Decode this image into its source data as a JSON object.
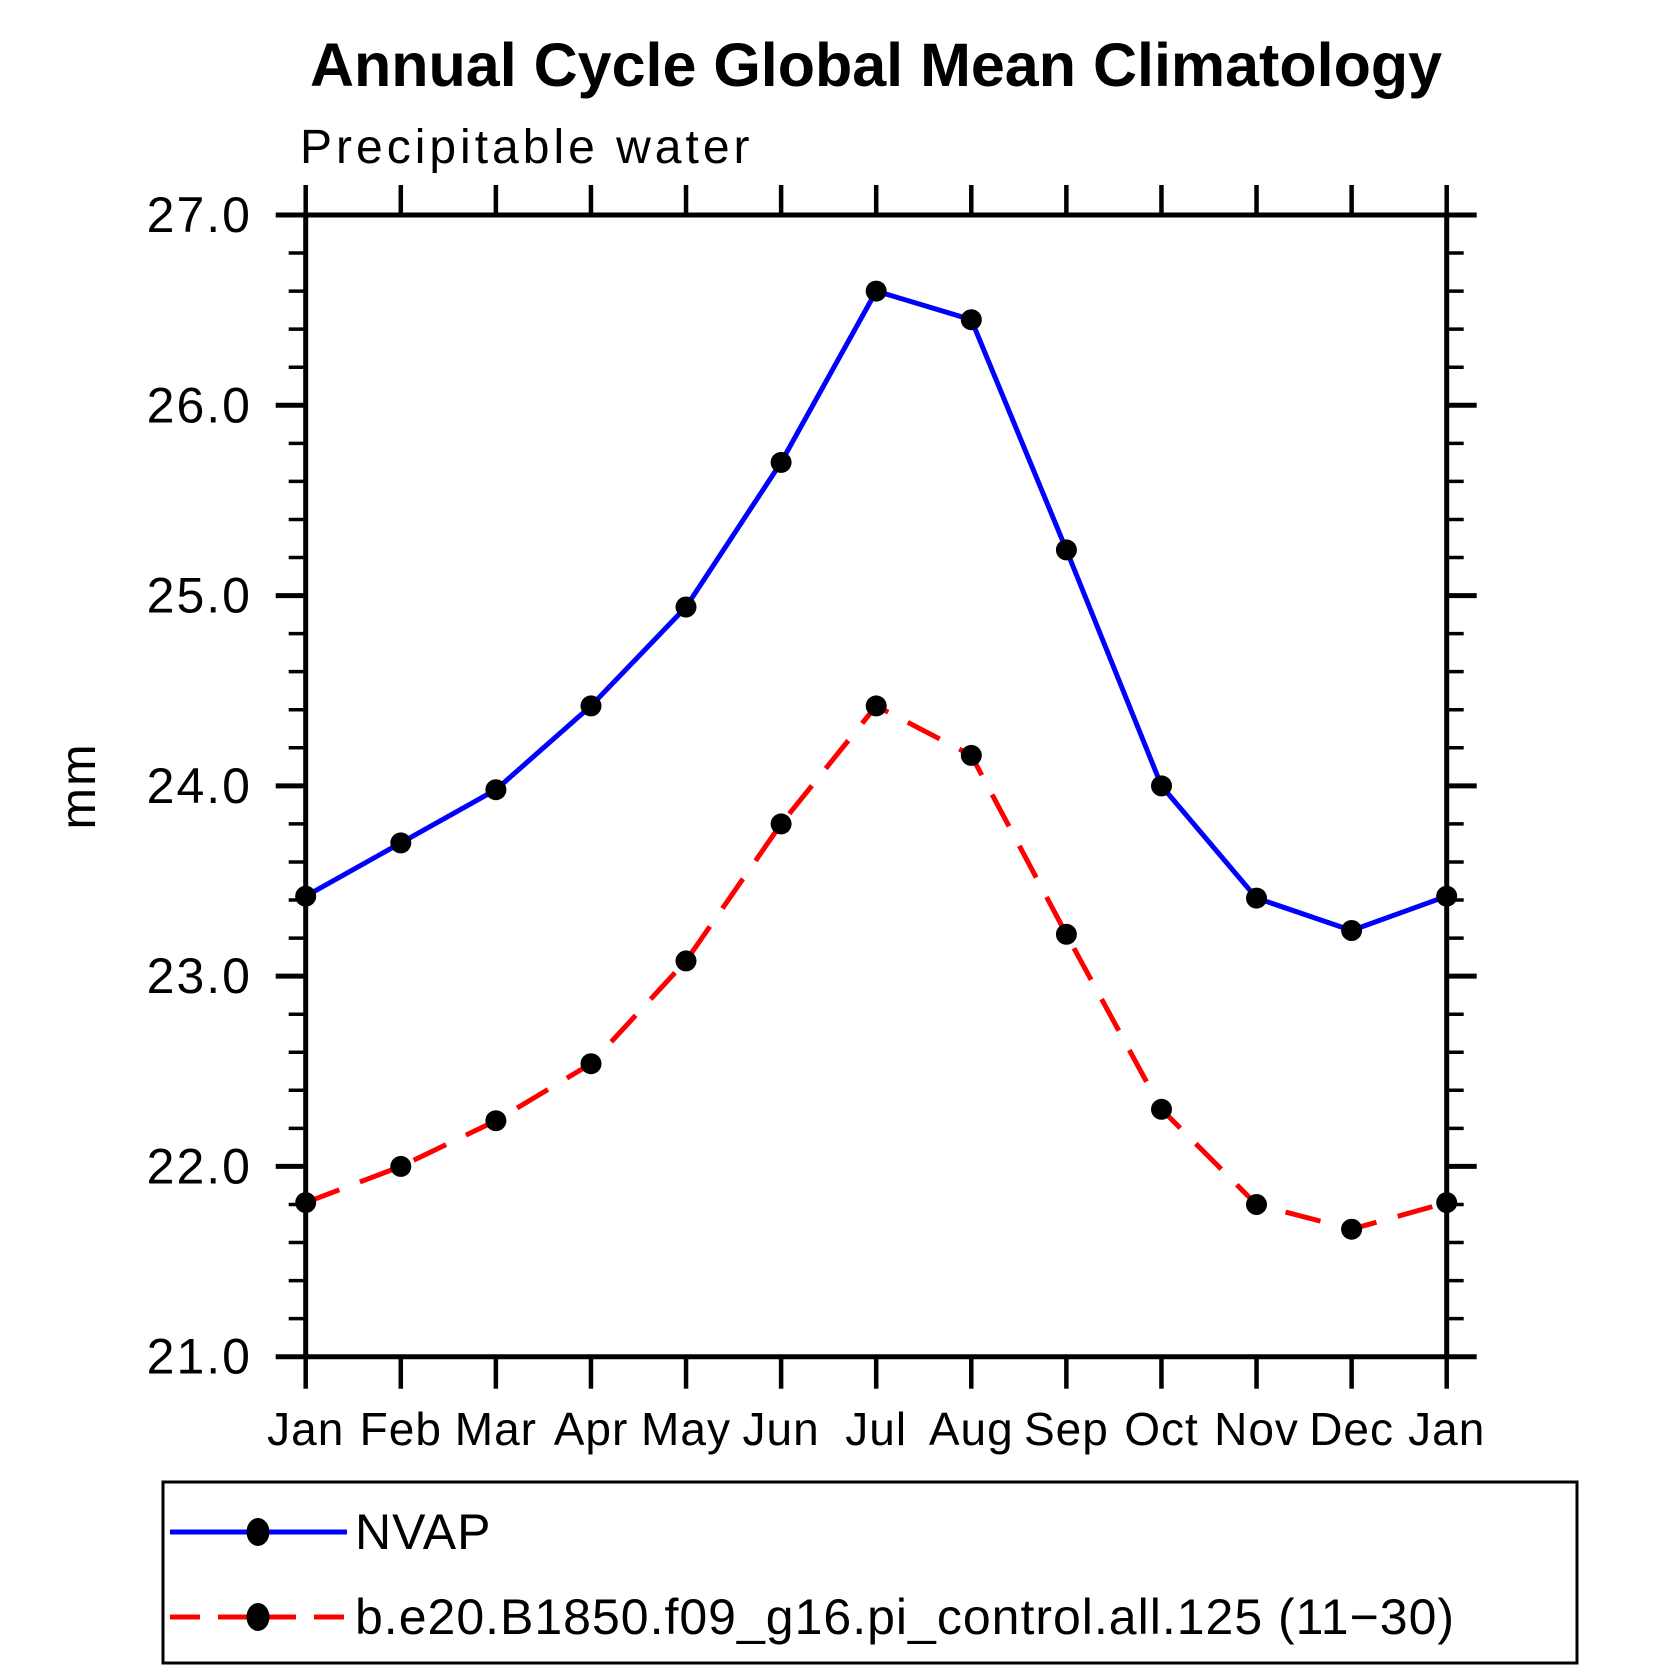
{
  "title": "Annual Cycle Global Mean Climatology",
  "chart_data": {
    "type": "line",
    "title": "Annual Cycle Global Mean Climatology",
    "subtitle": "Precipitable water",
    "ylabel": "mm",
    "xlabel": "",
    "ylim": [
      21.0,
      27.0
    ],
    "ytick_step": 1.0,
    "yminor_step": 0.2,
    "ytick_labels": [
      "27.0",
      "26.0",
      "25.0",
      "24.0",
      "23.0",
      "22.0",
      "21.0"
    ],
    "categories": [
      "Jan",
      "Feb",
      "Mar",
      "Apr",
      "May",
      "Jun",
      "Jul",
      "Aug",
      "Sep",
      "Oct",
      "Nov",
      "Dec",
      "Jan"
    ],
    "grid": false,
    "legend_position": "below-chart",
    "series": [
      {
        "name": "NVAP",
        "line_color": "#0000ff",
        "line_style": "solid",
        "marker": "filled-circle",
        "marker_color": "#000000",
        "values": [
          23.42,
          23.7,
          23.98,
          24.42,
          24.94,
          25.7,
          26.6,
          26.45,
          25.24,
          24.0,
          23.41,
          23.24,
          23.42
        ]
      },
      {
        "name": "b.e20.B1850.f09_g16.pi_control.all.125 (11−30)",
        "line_color": "#ff0000",
        "line_style": "dashed",
        "marker": "filled-circle",
        "marker_color": "#000000",
        "values": [
          21.81,
          22.0,
          22.24,
          22.54,
          23.08,
          23.8,
          24.42,
          24.16,
          23.22,
          22.3,
          21.8,
          21.67,
          21.81
        ]
      }
    ]
  }
}
